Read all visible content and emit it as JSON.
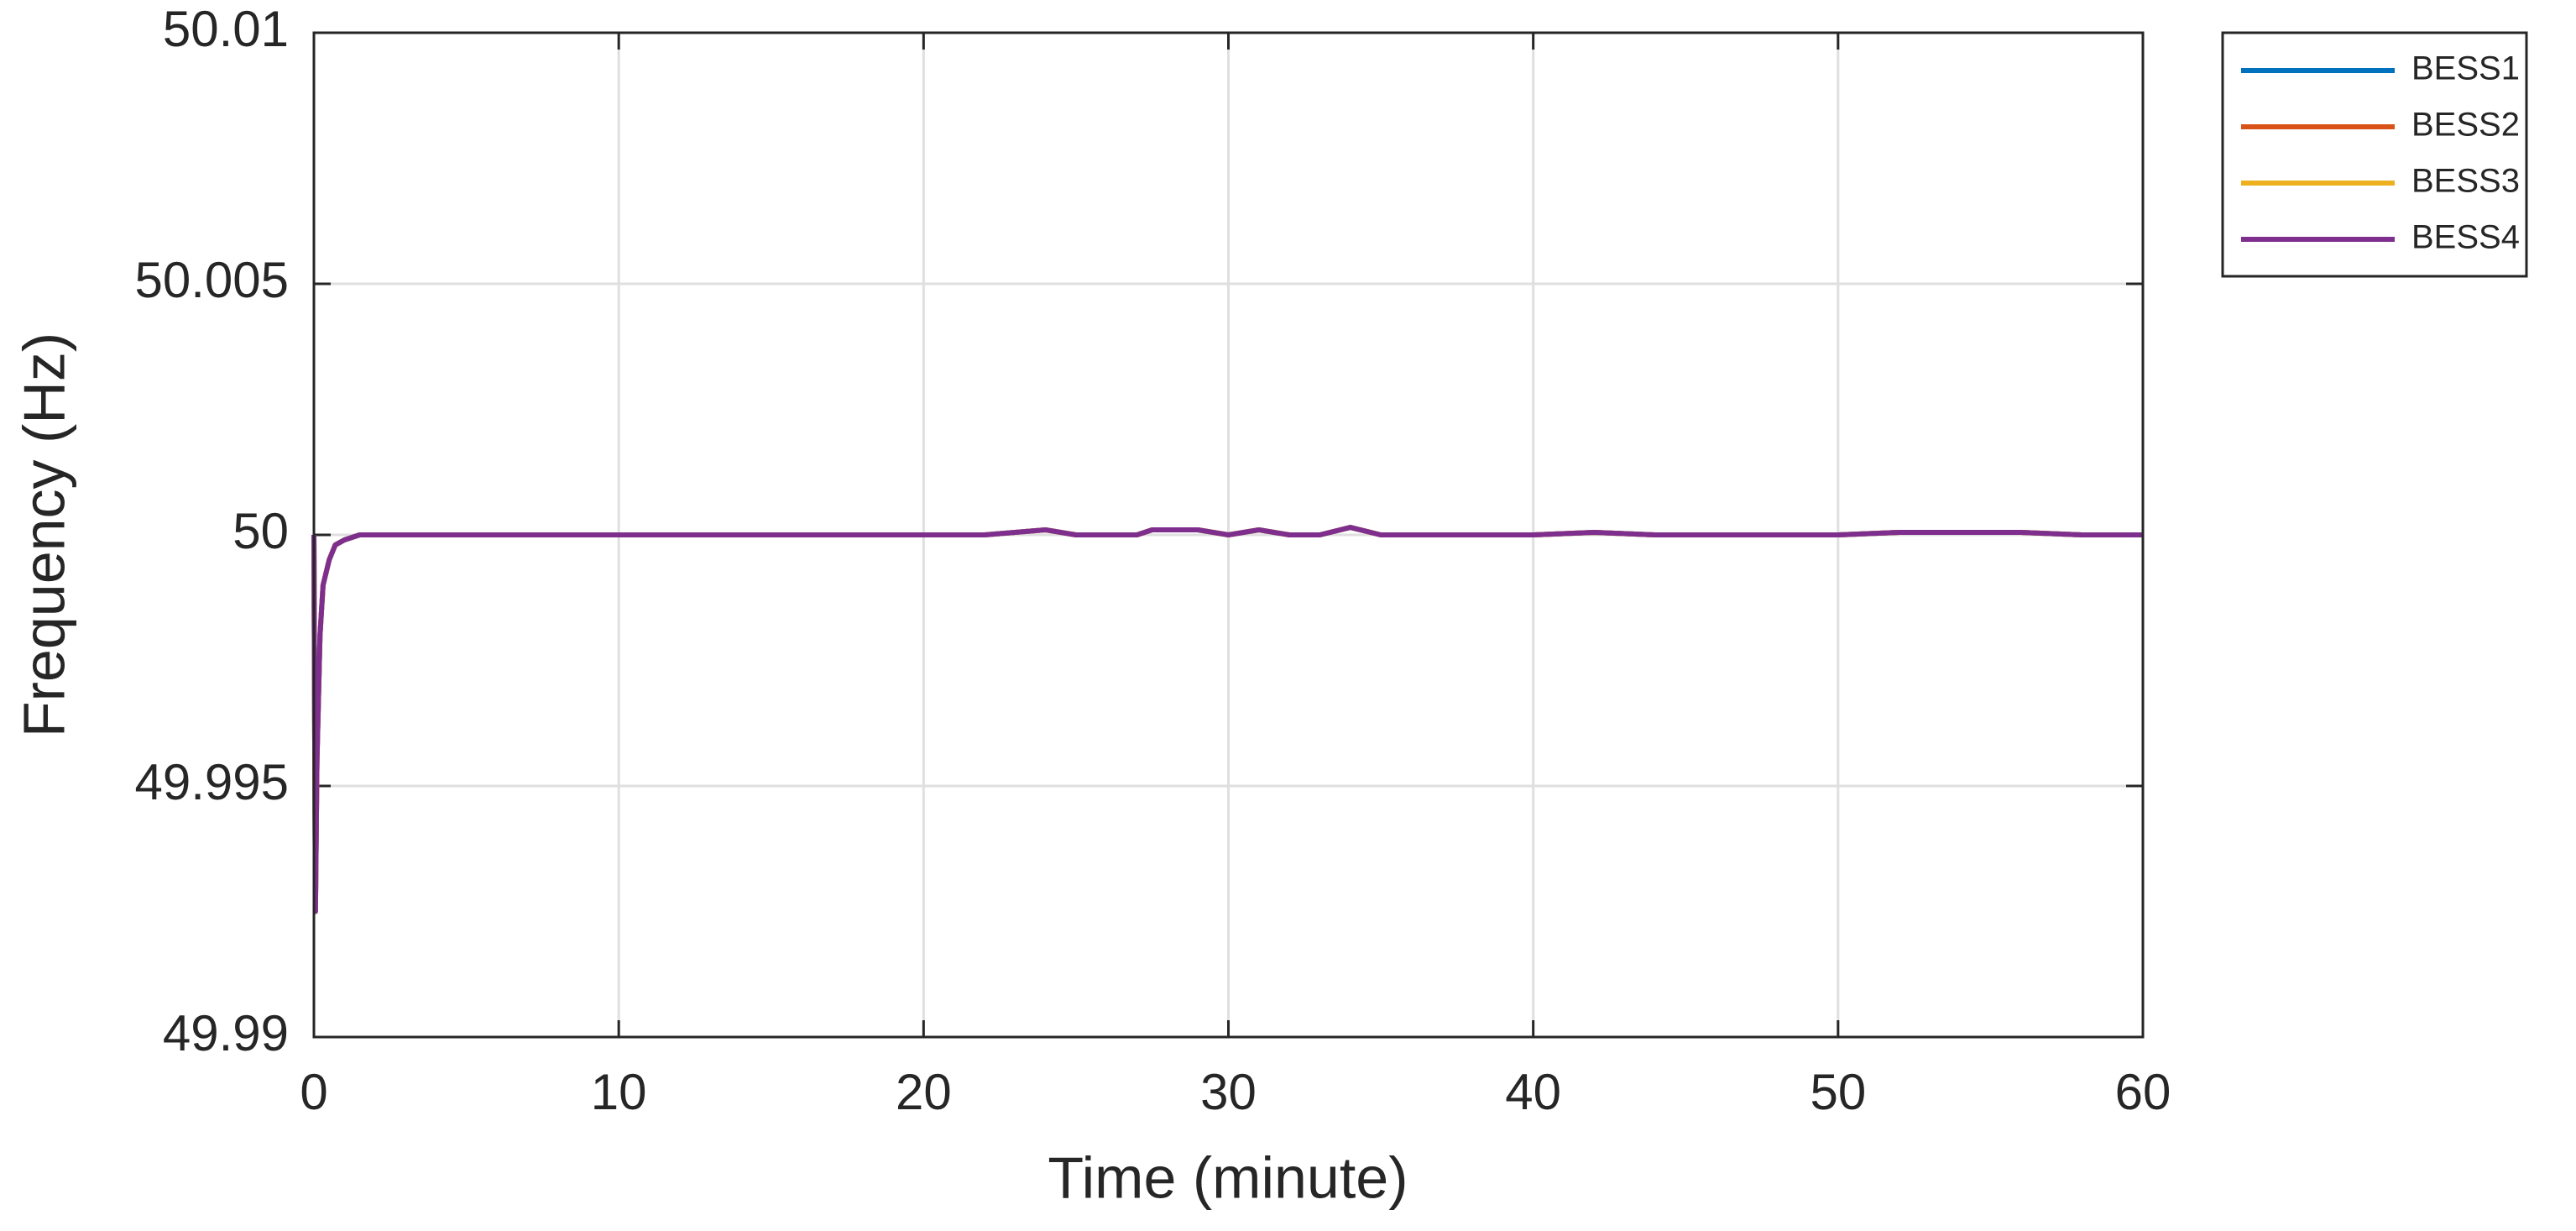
{
  "chart_data": {
    "type": "line",
    "x_label": "Time (minute)",
    "y_label": "Frequency (Hz)",
    "x": [
      0,
      0.05,
      0.1,
      0.2,
      0.3,
      0.5,
      0.7,
      1,
      1.5,
      2,
      4,
      6,
      8,
      10,
      12,
      14,
      16,
      18,
      20,
      22,
      24,
      25,
      26,
      27,
      27.5,
      28,
      29,
      30,
      31,
      32,
      33,
      34,
      35,
      36,
      38,
      40,
      42,
      44,
      46,
      48,
      50,
      52,
      54,
      56,
      58,
      60
    ],
    "series": [
      {
        "name": "BESS1",
        "color": "#0072BD",
        "values": [
          50,
          49.9925,
          49.9955,
          49.998,
          49.999,
          49.9995,
          49.9998,
          49.9999,
          50,
          50,
          50,
          50,
          50,
          50,
          50,
          50,
          50,
          50,
          50,
          50,
          50.0001,
          50,
          50,
          50,
          50.0001,
          50.0001,
          50.0001,
          50,
          50.0001,
          50,
          50,
          50.00015,
          50,
          50,
          50,
          50,
          50.00005,
          50,
          50,
          50,
          50,
          50.00005,
          50.00005,
          50.00005,
          50,
          50
        ]
      },
      {
        "name": "BESS2",
        "color": "#D95319",
        "values": [
          50,
          49.9925,
          49.9955,
          49.998,
          49.999,
          49.9995,
          49.9998,
          49.9999,
          50,
          50,
          50,
          50,
          50,
          50,
          50,
          50,
          50,
          50,
          50,
          50,
          50.0001,
          50,
          50,
          50,
          50.0001,
          50.0001,
          50.0001,
          50,
          50.0001,
          50,
          50,
          50.00015,
          50,
          50,
          50,
          50,
          50.00005,
          50,
          50,
          50,
          50,
          50.00005,
          50.00005,
          50.00005,
          50,
          50
        ]
      },
      {
        "name": "BESS3",
        "color": "#EDB120",
        "values": [
          50,
          49.9925,
          49.9955,
          49.998,
          49.999,
          49.9995,
          49.9998,
          49.9999,
          50,
          50,
          50,
          50,
          50,
          50,
          50,
          50,
          50,
          50,
          50,
          50,
          50.0001,
          50,
          50,
          50,
          50.0001,
          50.0001,
          50.0001,
          50,
          50.0001,
          50,
          50,
          50.00015,
          50,
          50,
          50,
          50,
          50.00005,
          50,
          50,
          50,
          50,
          50.00005,
          50.00005,
          50.00005,
          50,
          50
        ]
      },
      {
        "name": "BESS4",
        "color": "#7E2F8E",
        "values": [
          50,
          49.9925,
          49.9955,
          49.998,
          49.999,
          49.9995,
          49.9998,
          49.9999,
          50,
          50,
          50,
          50,
          50,
          50,
          50,
          50,
          50,
          50,
          50,
          50,
          50.0001,
          50,
          50,
          50,
          50.0001,
          50.0001,
          50.0001,
          50,
          50.0001,
          50,
          50,
          50.00015,
          50,
          50,
          50,
          50,
          50.00005,
          50,
          50,
          50,
          50,
          50.00005,
          50.00005,
          50.00005,
          50,
          50
        ]
      }
    ],
    "xlim": [
      0,
      60
    ],
    "xticks": [
      0,
      10,
      20,
      30,
      40,
      50,
      60
    ],
    "ylim": [
      49.99,
      50.01
    ],
    "yticks": [
      49.99,
      49.995,
      50,
      50.005,
      50.01
    ],
    "grid": true,
    "legend_position": "outside-right"
  }
}
